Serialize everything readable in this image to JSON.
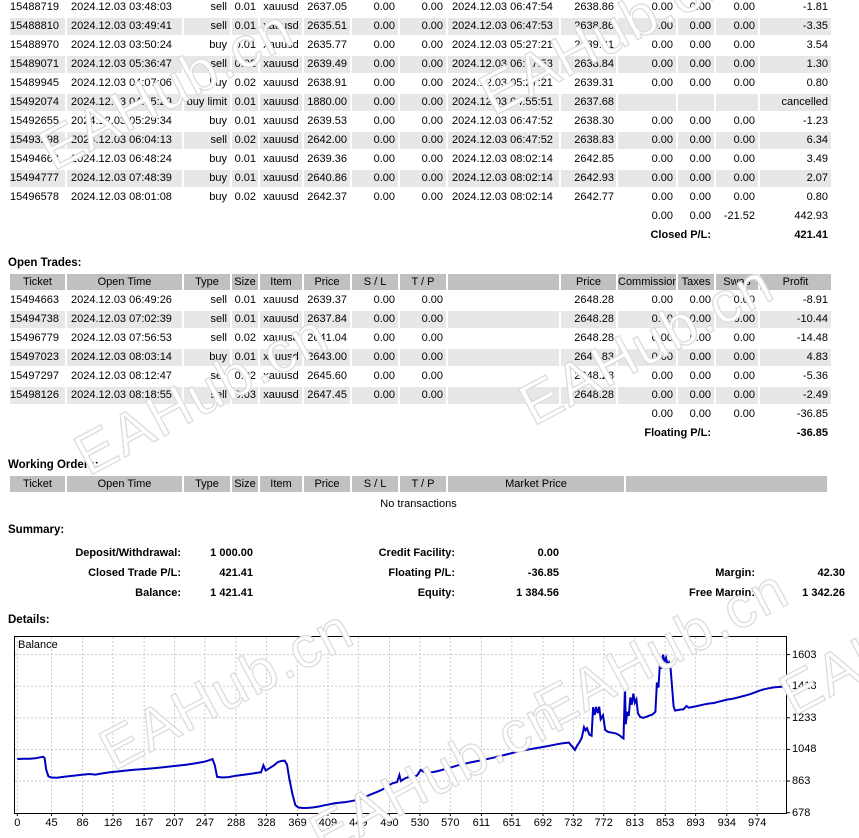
{
  "watermark": {
    "text": "EAHub.cn"
  },
  "closed_trades": {
    "rows": [
      [
        "15488719",
        "2024.12.03 03:48:03",
        "sell",
        "0.01",
        "xauusd",
        "2637.05",
        "0.00",
        "0.00",
        "2024.12.03 06:47:54",
        "2638.86",
        "0.00",
        "0.00",
        "0.00",
        "-1.81"
      ],
      [
        "15488810",
        "2024.12.03 03:49:41",
        "sell",
        "0.01",
        "xauusd",
        "2635.51",
        "0.00",
        "0.00",
        "2024.12.03 06:47:53",
        "2638.86",
        "0.00",
        "0.00",
        "0.00",
        "-3.35"
      ],
      [
        "15488970",
        "2024.12.03 03:50:24",
        "buy",
        "0.01",
        "xauusd",
        "2635.77",
        "0.00",
        "0.00",
        "2024.12.03 05:27:21",
        "2639.31",
        "0.00",
        "0.00",
        "0.00",
        "3.54"
      ],
      [
        "15489071",
        "2024.12.03 05:36:47",
        "sell",
        "0.02",
        "xauusd",
        "2639.49",
        "0.00",
        "0.00",
        "2024.12.03 06:47:53",
        "2638.84",
        "0.00",
        "0.00",
        "0.00",
        "1.30"
      ],
      [
        "15489945",
        "2024.12.03 04:07:06",
        "buy",
        "0.02",
        "xauusd",
        "2638.91",
        "0.00",
        "0.00",
        "2024.12.03 05:27:21",
        "2639.31",
        "0.00",
        "0.00",
        "0.00",
        "0.80"
      ],
      [
        "15492074",
        "2024.12.03 04:55:29",
        "buy limit",
        "0.01",
        "xauusd",
        "1880.00",
        "0.00",
        "0.00",
        "2024.12.03 04:55:51",
        "2637.68",
        "",
        "",
        "",
        "cancelled"
      ],
      [
        "15492655",
        "2024.12.03 05:29:34",
        "buy",
        "0.01",
        "xauusd",
        "2639.53",
        "0.00",
        "0.00",
        "2024.12.03 06:47:52",
        "2638.30",
        "0.00",
        "0.00",
        "0.00",
        "-1.23"
      ],
      [
        "15493298",
        "2024.12.03 06:04:13",
        "sell",
        "0.02",
        "xauusd",
        "2642.00",
        "0.00",
        "0.00",
        "2024.12.03 06:47:52",
        "2638.83",
        "0.00",
        "0.00",
        "0.00",
        "6.34"
      ],
      [
        "15494662",
        "2024.12.03 06:48:24",
        "buy",
        "0.01",
        "xauusd",
        "2639.36",
        "0.00",
        "0.00",
        "2024.12.03 08:02:14",
        "2642.85",
        "0.00",
        "0.00",
        "0.00",
        "3.49"
      ],
      [
        "15494777",
        "2024.12.03 07:48:39",
        "buy",
        "0.01",
        "xauusd",
        "2640.86",
        "0.00",
        "0.00",
        "2024.12.03 08:02:14",
        "2642.93",
        "0.00",
        "0.00",
        "0.00",
        "2.07"
      ],
      [
        "15496578",
        "2024.12.03 08:01:08",
        "buy",
        "0.02",
        "xauusd",
        "2642.37",
        "0.00",
        "0.00",
        "2024.12.03 08:02:14",
        "2642.77",
        "0.00",
        "0.00",
        "0.00",
        "0.80"
      ]
    ],
    "totals": [
      "0.00",
      "0.00",
      "-21.52",
      "442.93"
    ],
    "pl_label": "Closed P/L:",
    "pl_value": "421.41"
  },
  "open_trades": {
    "title": "Open Trades:",
    "headers": [
      "Ticket",
      "Open Time",
      "Type",
      "Size",
      "Item",
      "Price",
      "S / L",
      "T / P",
      "",
      "Price",
      "Commission",
      "Taxes",
      "Swap",
      "Profit"
    ],
    "rows": [
      [
        "15494663",
        "2024.12.03 06:49:26",
        "sell",
        "0.01",
        "xauusd",
        "2639.37",
        "0.00",
        "0.00",
        "",
        "2648.28",
        "0.00",
        "0.00",
        "0.00",
        "-8.91"
      ],
      [
        "15494738",
        "2024.12.03 07:02:39",
        "sell",
        "0.01",
        "xauusd",
        "2637.84",
        "0.00",
        "0.00",
        "",
        "2648.28",
        "0.00",
        "0.00",
        "0.00",
        "-10.44"
      ],
      [
        "15496779",
        "2024.12.03 07:56:53",
        "sell",
        "0.02",
        "xauusd",
        "2641.04",
        "0.00",
        "0.00",
        "",
        "2648.28",
        "0.00",
        "0.00",
        "0.00",
        "-14.48"
      ],
      [
        "15497023",
        "2024.12.03 08:03:14",
        "buy",
        "0.01",
        "xauusd",
        "2643.00",
        "0.00",
        "0.00",
        "",
        "2647.83",
        "0.00",
        "0.00",
        "0.00",
        "4.83"
      ],
      [
        "15497297",
        "2024.12.03 08:12:47",
        "sell",
        "0.02",
        "xauusd",
        "2645.60",
        "0.00",
        "0.00",
        "",
        "2648.28",
        "0.00",
        "0.00",
        "0.00",
        "-5.36"
      ],
      [
        "15498126",
        "2024.12.03 08:18:55",
        "sell",
        "0.03",
        "xauusd",
        "2647.45",
        "0.00",
        "0.00",
        "",
        "2648.28",
        "0.00",
        "0.00",
        "0.00",
        "-2.49"
      ]
    ],
    "totals": [
      "0.00",
      "0.00",
      "0.00",
      "-36.85"
    ],
    "pl_label": "Floating P/L:",
    "pl_value": "-36.85"
  },
  "working_orders": {
    "title": "Working Orders:",
    "headers": [
      "Ticket",
      "Open Time",
      "Type",
      "Size",
      "Item",
      "Price",
      "S / L",
      "T / P",
      "Market Price",
      ""
    ],
    "empty_text": "No transactions"
  },
  "summary": {
    "title": "Summary:",
    "rows": [
      [
        "Deposit/Withdrawal:",
        "1 000.00",
        "Credit Facility:",
        "0.00",
        "",
        ""
      ],
      [
        "Closed Trade P/L:",
        "421.41",
        "Floating P/L:",
        "-36.85",
        "Margin:",
        "42.30"
      ],
      [
        "Balance:",
        "1 421.41",
        "Equity:",
        "1 384.56",
        "Free Margin:",
        "1 342.26"
      ]
    ]
  },
  "details": {
    "title": "Details:"
  },
  "chart_data": {
    "type": "line",
    "title": "Balance",
    "legend": "Balance",
    "line_color": "#0000c0",
    "grid": true,
    "x_ticks": [
      0,
      45,
      86,
      126,
      167,
      207,
      247,
      288,
      328,
      369,
      409,
      449,
      490,
      530,
      570,
      611,
      651,
      692,
      732,
      772,
      813,
      853,
      893,
      934,
      974
    ],
    "y_ticks": [
      678,
      863,
      1048,
      1233,
      1418,
      1603
    ],
    "x_range": [
      0,
      1015
    ],
    "y_range": [
      676,
      1706
    ],
    "points": [
      [
        0,
        992
      ],
      [
        8,
        993
      ],
      [
        16,
        994
      ],
      [
        24,
        996
      ],
      [
        30,
        1002
      ],
      [
        34,
        1005
      ],
      [
        36,
        998
      ],
      [
        38,
        930
      ],
      [
        41,
        890
      ],
      [
        45,
        884
      ],
      [
        52,
        882
      ],
      [
        58,
        886
      ],
      [
        66,
        890
      ],
      [
        75,
        895
      ],
      [
        85,
        900
      ],
      [
        95,
        904
      ],
      [
        103,
        901
      ],
      [
        112,
        908
      ],
      [
        122,
        914
      ],
      [
        132,
        919
      ],
      [
        142,
        924
      ],
      [
        152,
        928
      ],
      [
        163,
        932
      ],
      [
        174,
        936
      ],
      [
        186,
        941
      ],
      [
        198,
        947
      ],
      [
        210,
        952
      ],
      [
        222,
        958
      ],
      [
        234,
        966
      ],
      [
        245,
        975
      ],
      [
        252,
        984
      ],
      [
        257,
        992
      ],
      [
        260,
        955
      ],
      [
        263,
        888
      ],
      [
        270,
        884
      ],
      [
        278,
        886
      ],
      [
        288,
        894
      ],
      [
        298,
        900
      ],
      [
        308,
        906
      ],
      [
        316,
        911
      ],
      [
        321,
        914
      ],
      [
        324,
        955
      ],
      [
        327,
        925
      ],
      [
        332,
        938
      ],
      [
        338,
        955
      ],
      [
        343,
        974
      ],
      [
        348,
        981
      ],
      [
        352,
        982
      ],
      [
        355,
        960
      ],
      [
        358,
        880
      ],
      [
        362,
        790
      ],
      [
        366,
        722
      ],
      [
        370,
        708
      ],
      [
        376,
        705
      ],
      [
        383,
        706
      ],
      [
        390,
        709
      ],
      [
        397,
        714
      ],
      [
        404,
        721
      ],
      [
        411,
        727
      ],
      [
        418,
        733
      ],
      [
        425,
        737
      ],
      [
        432,
        740
      ],
      [
        439,
        745
      ],
      [
        446,
        751
      ],
      [
        453,
        762
      ],
      [
        460,
        774
      ],
      [
        467,
        788
      ],
      [
        474,
        800
      ],
      [
        481,
        814
      ],
      [
        488,
        836
      ],
      [
        494,
        850
      ],
      [
        500,
        857
      ],
      [
        503,
        898
      ],
      [
        505,
        863
      ],
      [
        509,
        875
      ],
      [
        514,
        885
      ],
      [
        520,
        890
      ],
      [
        526,
        894
      ],
      [
        531,
        928
      ],
      [
        535,
        917
      ],
      [
        541,
        913
      ],
      [
        548,
        916
      ],
      [
        556,
        924
      ],
      [
        564,
        934
      ],
      [
        572,
        944
      ],
      [
        580,
        955
      ],
      [
        588,
        963
      ],
      [
        594,
        970
      ],
      [
        602,
        977
      ],
      [
        611,
        985
      ],
      [
        620,
        993
      ],
      [
        629,
        1002
      ],
      [
        638,
        1012
      ],
      [
        647,
        1022
      ],
      [
        656,
        1032
      ],
      [
        665,
        1041
      ],
      [
        674,
        1049
      ],
      [
        683,
        1056
      ],
      [
        692,
        1062
      ],
      [
        701,
        1070
      ],
      [
        710,
        1078
      ],
      [
        718,
        1084
      ],
      [
        726,
        1088
      ],
      [
        731,
        1062
      ],
      [
        734,
        1045
      ],
      [
        737,
        1070
      ],
      [
        740,
        1090
      ],
      [
        743,
        1115
      ],
      [
        746,
        1178
      ],
      [
        748,
        1160
      ],
      [
        750,
        1172
      ],
      [
        753,
        1135
      ],
      [
        756,
        1128
      ],
      [
        758,
        1295
      ],
      [
        760,
        1250
      ],
      [
        762,
        1297
      ],
      [
        764,
        1260
      ],
      [
        766,
        1298
      ],
      [
        768,
        1225
      ],
      [
        771,
        1248
      ],
      [
        774,
        1162
      ],
      [
        778,
        1150
      ],
      [
        783,
        1146
      ],
      [
        788,
        1142
      ],
      [
        793,
        1130
      ],
      [
        796,
        1118
      ],
      [
        798,
        1112
      ],
      [
        800,
        1420
      ],
      [
        801,
        1195
      ],
      [
        803,
        1268
      ],
      [
        805,
        1245
      ],
      [
        807,
        1352
      ],
      [
        809,
        1310
      ],
      [
        811,
        1375
      ],
      [
        813,
        1322
      ],
      [
        815,
        1340
      ],
      [
        817,
        1260
      ],
      [
        820,
        1238
      ],
      [
        824,
        1233
      ],
      [
        828,
        1239
      ],
      [
        832,
        1246
      ],
      [
        836,
        1252
      ],
      [
        840,
        1268
      ],
      [
        842,
        1440
      ],
      [
        844,
        1410
      ],
      [
        846,
        1548
      ],
      [
        848,
        1520
      ],
      [
        850,
        1603
      ],
      [
        852,
        1560
      ],
      [
        854,
        1585
      ],
      [
        856,
        1545
      ],
      [
        858,
        1558
      ],
      [
        860,
        1520
      ],
      [
        862,
        1412
      ],
      [
        864,
        1300
      ],
      [
        866,
        1275
      ],
      [
        869,
        1278
      ],
      [
        873,
        1281
      ],
      [
        877,
        1283
      ],
      [
        881,
        1302
      ],
      [
        884,
        1292
      ],
      [
        888,
        1296
      ],
      [
        893,
        1300
      ],
      [
        899,
        1306
      ],
      [
        905,
        1312
      ],
      [
        911,
        1317
      ],
      [
        917,
        1320
      ],
      [
        923,
        1327
      ],
      [
        929,
        1334
      ],
      [
        935,
        1340
      ],
      [
        941,
        1344
      ],
      [
        947,
        1350
      ],
      [
        953,
        1357
      ],
      [
        959,
        1364
      ],
      [
        965,
        1372
      ],
      [
        971,
        1382
      ],
      [
        977,
        1392
      ],
      [
        983,
        1400
      ],
      [
        989,
        1406
      ],
      [
        996,
        1411
      ],
      [
        1004,
        1414
      ],
      [
        1013,
        1418
      ]
    ]
  }
}
